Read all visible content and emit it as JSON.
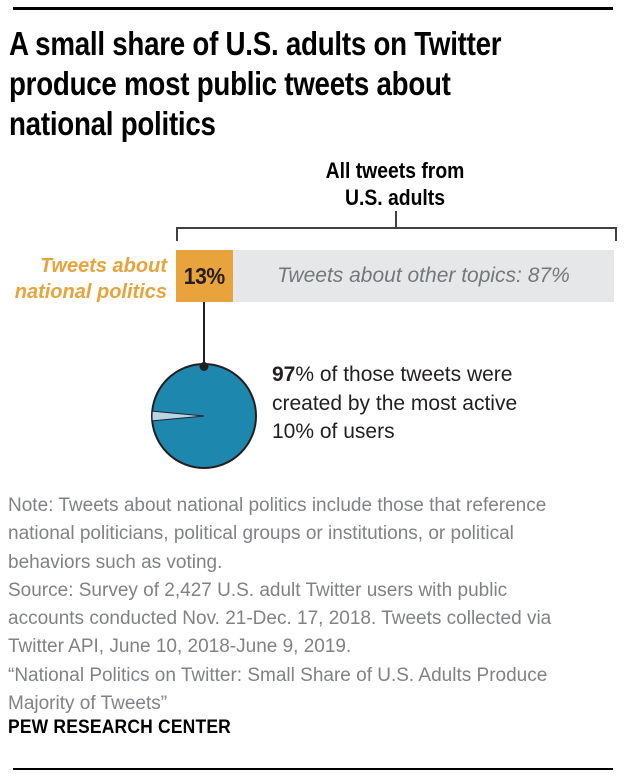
{
  "header": {
    "title_lines": [
      "A small share of U.S. adults on Twitter",
      "produce most public tweets about",
      "national politics"
    ]
  },
  "bar_section": {
    "bracket_label_lines": [
      "All tweets from",
      "U.S. adults"
    ],
    "left_label_lines": [
      "Tweets about",
      "national politics"
    ],
    "segments": [
      {
        "name": "tweets-about-national-politics",
        "label": "13%",
        "value": 13,
        "color": "#e8a33d"
      },
      {
        "name": "tweets-about-other-topics",
        "label": "Tweets about other topics: 87%",
        "value": 87,
        "color": "#e6e7e8"
      }
    ]
  },
  "pie_section": {
    "caption": {
      "bold": "97",
      "line1_rest": "% of those tweets were",
      "line2": "created by the most active",
      "line3": "10% of users"
    },
    "colors": {
      "main": "#1e87ae",
      "slice": "#b9d5e4",
      "outline": "#231f20"
    }
  },
  "footer": {
    "note_lines": [
      "Note: Tweets about national politics include those that reference",
      "national politicians, political groups or institutions, or political",
      "behaviors such as voting.",
      "Source: Survey of 2,427 U.S. adult Twitter users with public",
      "accounts conducted Nov. 21-Dec. 17, 2018. Tweets collected via",
      "Twitter API, June 10, 2018-June 9, 2019.",
      "“National Politics on Twitter: Small Share of U.S. Adults Produce",
      "Majority of Tweets”"
    ],
    "brand": "PEW RESEARCH CENTER"
  },
  "chart_data": [
    {
      "type": "bar",
      "orientation": "horizontal",
      "stacked": true,
      "title": "All tweets from U.S. adults",
      "categories": [
        "Tweets about national politics",
        "Tweets about other topics"
      ],
      "values": [
        13,
        87
      ],
      "unit": "%",
      "colors": [
        "#e8a33d",
        "#e6e7e8"
      ],
      "data_labels": [
        "13%",
        "Tweets about other topics: 87%"
      ],
      "legend_position": "none",
      "grid": false
    },
    {
      "type": "pie",
      "labels": [
        "Most active 10% of users",
        "Other users"
      ],
      "values": [
        97,
        3
      ],
      "colors": [
        "#1e87ae",
        "#b9d5e4"
      ],
      "annotation": "97% of those tweets were created by the most active 10% of users",
      "legend_position": "none"
    }
  ]
}
